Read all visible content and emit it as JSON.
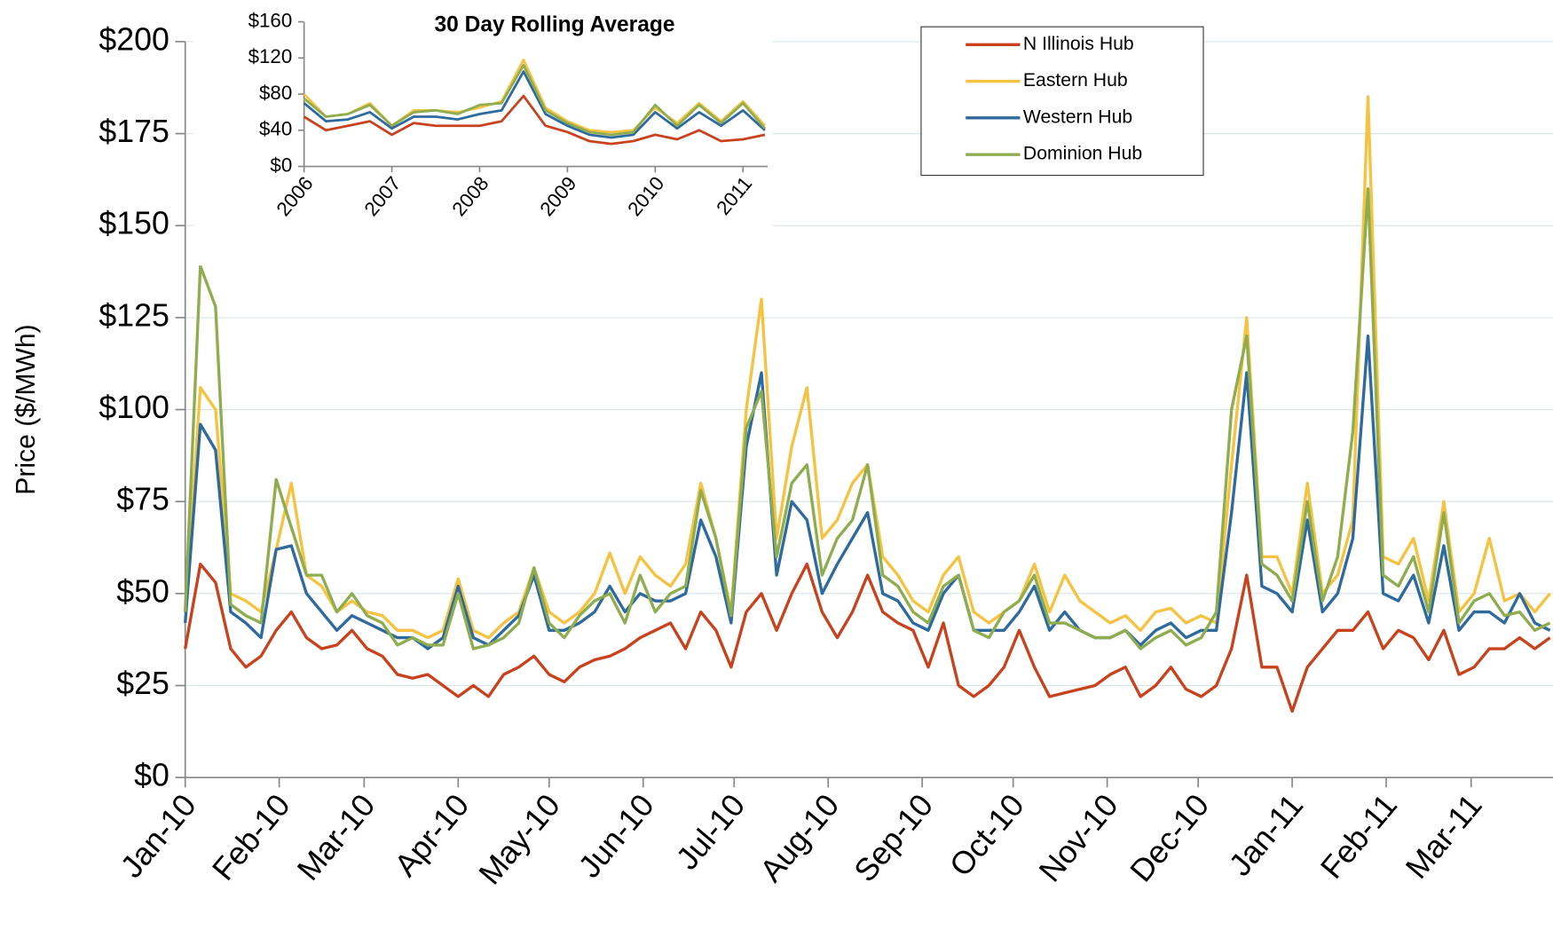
{
  "chart_data": [
    {
      "type": "line",
      "y_label": "Price ($/MWh)",
      "x": [
        0,
        5,
        10,
        15,
        20,
        25,
        30,
        35,
        40,
        45,
        50,
        55,
        60,
        65,
        70,
        75,
        80,
        85,
        90,
        95,
        100,
        105,
        110,
        115,
        120,
        125,
        130,
        135,
        140,
        145,
        150,
        155,
        160,
        165,
        170,
        175,
        180,
        185,
        190,
        195,
        200,
        205,
        210,
        215,
        220,
        225,
        230,
        235,
        240,
        245,
        250,
        255,
        260,
        265,
        270,
        275,
        280,
        285,
        290,
        295,
        300,
        305,
        310,
        315,
        320,
        325,
        330,
        335,
        340,
        345,
        350,
        355,
        360,
        365,
        370,
        375,
        380,
        385,
        390,
        395,
        400,
        405,
        410,
        415,
        420,
        425,
        430,
        435,
        440,
        445,
        450
      ],
      "series": [
        {
          "name": "N Illinois Hub",
          "color": "#c8431d",
          "values": [
            35,
            58,
            53,
            35,
            30,
            33,
            40,
            45,
            38,
            35,
            36,
            40,
            35,
            33,
            28,
            27,
            28,
            25,
            22,
            25,
            22,
            28,
            30,
            33,
            28,
            26,
            30,
            32,
            33,
            35,
            38,
            40,
            42,
            35,
            45,
            40,
            30,
            45,
            50,
            40,
            50,
            58,
            45,
            38,
            45,
            55,
            45,
            42,
            40,
            30,
            42,
            25,
            22,
            25,
            30,
            40,
            30,
            22,
            23,
            24,
            25,
            28,
            30,
            22,
            25,
            30,
            24,
            22,
            25,
            35,
            55,
            30,
            30,
            18,
            30,
            35,
            40,
            40,
            45,
            35,
            40,
            38,
            32,
            40,
            28,
            30,
            35,
            35,
            38,
            35,
            38
          ]
        },
        {
          "name": "Eastern Hub",
          "color": "#f5c242",
          "values": [
            45,
            106,
            100,
            50,
            48,
            45,
            62,
            80,
            55,
            52,
            45,
            48,
            45,
            44,
            40,
            40,
            38,
            40,
            54,
            40,
            38,
            42,
            45,
            57,
            45,
            42,
            45,
            50,
            61,
            50,
            60,
            55,
            52,
            58,
            80,
            65,
            45,
            100,
            130,
            65,
            90,
            106,
            65,
            70,
            80,
            85,
            60,
            55,
            48,
            45,
            55,
            60,
            45,
            42,
            45,
            48,
            58,
            45,
            55,
            48,
            45,
            42,
            44,
            40,
            45,
            46,
            42,
            44,
            42,
            85,
            125,
            60,
            60,
            50,
            80,
            50,
            55,
            70,
            185,
            60,
            58,
            65,
            48,
            75,
            45,
            50,
            65,
            48,
            50,
            45,
            50
          ]
        },
        {
          "name": "Western Hub",
          "color": "#2e6a9e",
          "values": [
            42,
            96,
            89,
            45,
            42,
            38,
            62,
            63,
            50,
            45,
            40,
            44,
            42,
            40,
            38,
            38,
            35,
            38,
            52,
            38,
            36,
            40,
            44,
            55,
            40,
            40,
            42,
            45,
            52,
            45,
            50,
            48,
            48,
            50,
            70,
            60,
            42,
            90,
            110,
            55,
            75,
            70,
            50,
            58,
            65,
            72,
            50,
            48,
            42,
            40,
            50,
            55,
            40,
            40,
            40,
            45,
            52,
            40,
            45,
            40,
            38,
            38,
            40,
            36,
            40,
            42,
            38,
            40,
            40,
            72,
            110,
            52,
            50,
            45,
            70,
            45,
            50,
            65,
            120,
            50,
            48,
            55,
            42,
            63,
            40,
            45,
            45,
            42,
            50,
            42,
            40
          ]
        },
        {
          "name": "Dominion Hub",
          "color": "#8fad4f",
          "values": [
            45,
            139,
            128,
            47,
            44,
            42,
            81,
            68,
            55,
            55,
            45,
            50,
            44,
            42,
            36,
            38,
            36,
            36,
            50,
            35,
            36,
            38,
            42,
            57,
            42,
            38,
            44,
            48,
            50,
            42,
            55,
            45,
            50,
            52,
            78,
            65,
            44,
            95,
            105,
            60,
            80,
            85,
            55,
            65,
            70,
            85,
            55,
            52,
            45,
            42,
            52,
            55,
            40,
            38,
            45,
            48,
            55,
            42,
            42,
            40,
            38,
            38,
            40,
            35,
            38,
            40,
            36,
            38,
            45,
            100,
            120,
            58,
            55,
            48,
            75,
            48,
            60,
            94,
            160,
            55,
            52,
            60,
            45,
            72,
            42,
            48,
            50,
            44,
            45,
            40,
            42
          ]
        }
      ],
      "xlim": [
        0,
        451
      ],
      "xticks": [
        {
          "value": 0,
          "label": "Jan-10"
        },
        {
          "value": 31,
          "label": "Feb-10"
        },
        {
          "value": 59,
          "label": "Mar-10"
        },
        {
          "value": 90,
          "label": "Apr-10"
        },
        {
          "value": 120,
          "label": "May-10"
        },
        {
          "value": 151,
          "label": "Jun-10"
        },
        {
          "value": 181,
          "label": "Jul-10"
        },
        {
          "value": 212,
          "label": "Aug-10"
        },
        {
          "value": 243,
          "label": "Sep-10"
        },
        {
          "value": 273,
          "label": "Oct-10"
        },
        {
          "value": 304,
          "label": "Nov-10"
        },
        {
          "value": 334,
          "label": "Dec-10"
        },
        {
          "value": 365,
          "label": "Jan-11"
        },
        {
          "value": 396,
          "label": "Feb-11"
        },
        {
          "value": 424,
          "label": "Mar-11"
        }
      ],
      "ylim": [
        0,
        200
      ],
      "yticks": [
        {
          "value": 0,
          "label": "$0"
        },
        {
          "value": 25,
          "label": "$25"
        },
        {
          "value": 50,
          "label": "$50"
        },
        {
          "value": 75,
          "label": "$75"
        },
        {
          "value": 100,
          "label": "$100"
        },
        {
          "value": 125,
          "label": "$125"
        },
        {
          "value": 150,
          "label": "$150"
        },
        {
          "value": 175,
          "label": "$175"
        },
        {
          "value": 200,
          "label": "$200"
        }
      ],
      "grid": true,
      "legend_position": "upper center"
    },
    {
      "type": "line",
      "title": "30 Day Rolling Average",
      "x": [
        2006,
        2006.25,
        2006.5,
        2006.75,
        2007,
        2007.25,
        2007.5,
        2007.75,
        2008,
        2008.25,
        2008.5,
        2008.75,
        2009,
        2009.25,
        2009.5,
        2009.75,
        2010,
        2010.25,
        2010.5,
        2010.75,
        2011,
        2011.25
      ],
      "series": [
        {
          "name": "N Illinois Hub",
          "color": "#c8431d",
          "values": [
            55,
            40,
            45,
            50,
            35,
            48,
            45,
            45,
            45,
            50,
            78,
            45,
            38,
            28,
            25,
            28,
            35,
            30,
            40,
            28,
            30,
            35
          ]
        },
        {
          "name": "Eastern Hub",
          "color": "#f5c242",
          "values": [
            80,
            55,
            58,
            70,
            45,
            62,
            62,
            60,
            65,
            72,
            118,
            65,
            50,
            40,
            38,
            40,
            65,
            48,
            70,
            50,
            72,
            45
          ]
        },
        {
          "name": "Western Hub",
          "color": "#2e6a9e",
          "values": [
            70,
            50,
            52,
            60,
            42,
            55,
            55,
            52,
            58,
            62,
            105,
            58,
            45,
            35,
            32,
            35,
            60,
            42,
            60,
            45,
            62,
            40
          ]
        },
        {
          "name": "Dominion Hub",
          "color": "#8fad4f",
          "values": [
            75,
            55,
            58,
            68,
            45,
            60,
            62,
            58,
            68,
            70,
            112,
            62,
            48,
            38,
            35,
            38,
            68,
            45,
            68,
            48,
            70,
            42
          ]
        }
      ],
      "xlim": [
        2006,
        2011.28
      ],
      "xticks": [
        2006,
        2007,
        2008,
        2009,
        2010,
        2011
      ],
      "ylim": [
        0,
        160
      ],
      "yticks": [
        {
          "value": 0,
          "label": "$0"
        },
        {
          "value": 40,
          "label": "$40"
        },
        {
          "value": 80,
          "label": "$80"
        },
        {
          "value": 120,
          "label": "$120"
        },
        {
          "value": 160,
          "label": "$160"
        }
      ],
      "grid": false
    }
  ]
}
